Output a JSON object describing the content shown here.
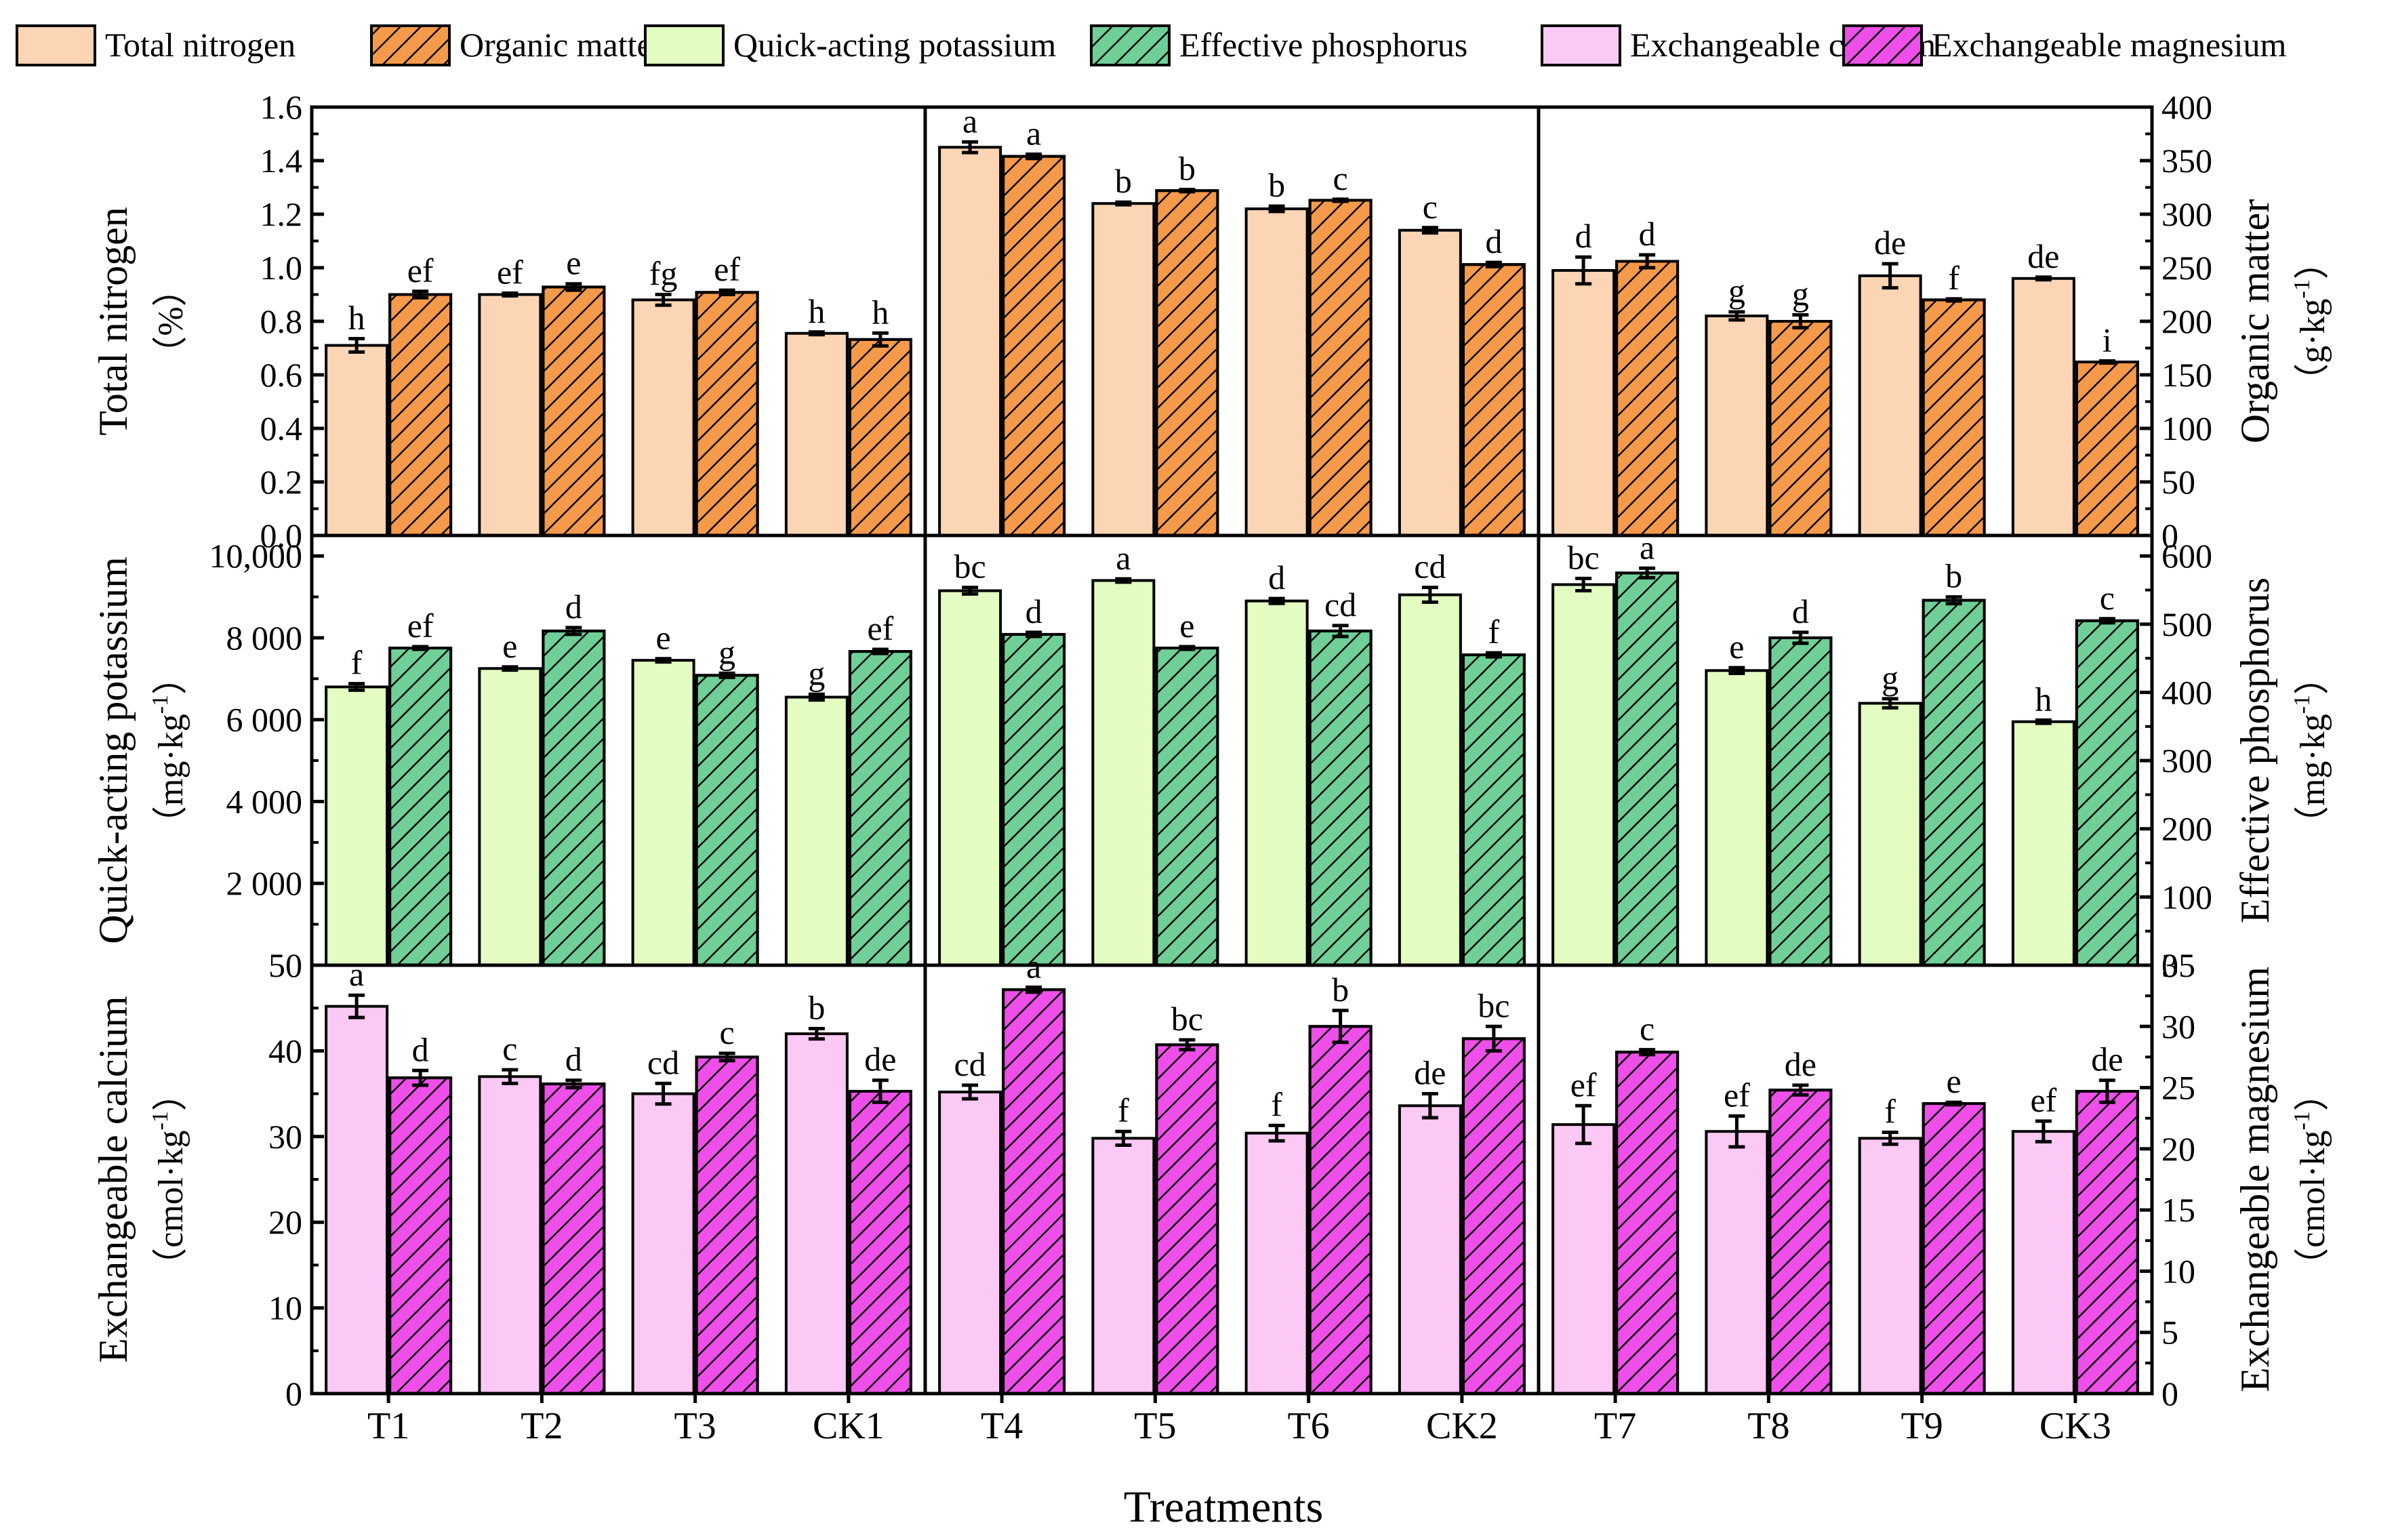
{
  "figure_title": "",
  "x_axis_label": "Treatments",
  "categories": [
    "T1",
    "T2",
    "T3",
    "CK1",
    "T4",
    "T5",
    "T6",
    "CK2",
    "T7",
    "T8",
    "T9",
    "CK3"
  ],
  "colors": {
    "total_nitrogen": "#fcd5b5",
    "organic_matter": "#f59a4a",
    "quick_acting_potassium": "#e3fcc2",
    "effective_phosphorus": "#6fcf97",
    "exchangeable_calcium": "#fcc9f4",
    "exchangeable_magnesium": "#ee4fe8"
  },
  "legend": [
    {
      "label": "Total nitrogen",
      "key": "total_nitrogen",
      "hatched": false
    },
    {
      "label": "Organic matter",
      "key": "organic_matter",
      "hatched": true
    },
    {
      "label": "Quick-acting potassium",
      "key": "quick_acting_potassium",
      "hatched": false
    },
    {
      "label": "Effective phosphorus",
      "key": "effective_phosphorus",
      "hatched": true
    },
    {
      "label": "Exchangeable calcium",
      "key": "exchangeable_calcium",
      "hatched": false
    },
    {
      "label": "Exchangeable magnesium",
      "key": "exchangeable_magnesium",
      "hatched": true
    }
  ],
  "chart_data": [
    {
      "type": "bar",
      "panel": "top",
      "categories": [
        "T1",
        "T2",
        "T3",
        "CK1",
        "T4",
        "T5",
        "T6",
        "CK2",
        "T7",
        "T8",
        "T9",
        "CK3"
      ],
      "left_axis": {
        "label_line1": "Total nitrogen",
        "label_line2": "（%）",
        "ylim": [
          0,
          1.6
        ],
        "ticks": [
          "0.0",
          "0.2",
          "0.4",
          "0.6",
          "0.8",
          "1.0",
          "1.2",
          "1.4",
          "1.6"
        ]
      },
      "right_axis": {
        "label_line1": "Organic matter",
        "label_line2": "（g·kg",
        "label_sup": "-1",
        "label_close": "）",
        "ylim": [
          0,
          400
        ],
        "ticks": [
          "0",
          "50",
          "100",
          "150",
          "200",
          "250",
          "300",
          "350",
          "400"
        ]
      },
      "series": [
        {
          "name": "Total nitrogen",
          "key": "total_nitrogen",
          "axis": "left",
          "hatched": false,
          "values": [
            0.71,
            0.9,
            0.88,
            0.755,
            1.45,
            1.24,
            1.22,
            1.14,
            0.99,
            0.82,
            0.97,
            0.96
          ],
          "errors": [
            0.025,
            0.005,
            0.02,
            0.005,
            0.02,
            0.005,
            0.01,
            0.01,
            0.05,
            0.015,
            0.045,
            0.005
          ],
          "letters": [
            "h",
            "ef",
            "fg",
            "h",
            "a",
            "b",
            "b",
            "c",
            "d",
            "g",
            "de",
            "de"
          ]
        },
        {
          "name": "Organic matter",
          "key": "organic_matter",
          "axis": "right",
          "hatched": true,
          "values": [
            225,
            232,
            227,
            183,
            354,
            322,
            313,
            253,
            256,
            200,
            220,
            162
          ],
          "errors": [
            3,
            3,
            2,
            6,
            2,
            1,
            1,
            2,
            6,
            6,
            1,
            1
          ],
          "letters": [
            "ef",
            "e",
            "ef",
            "h",
            "a",
            "b",
            "c",
            "d",
            "d",
            "g",
            "f",
            "i"
          ]
        }
      ]
    },
    {
      "type": "bar",
      "panel": "middle",
      "categories": [
        "T1",
        "T2",
        "T3",
        "CK1",
        "T4",
        "T5",
        "T6",
        "CK2",
        "T7",
        "T8",
        "T9",
        "CK3"
      ],
      "left_axis": {
        "label_line1": "Quick-acting potassium",
        "label_line2": "（mg·kg",
        "label_sup": "-1",
        "label_close": "）",
        "ylim": [
          0,
          10500
        ],
        "ticks": [
          "",
          "2 000",
          "4 000",
          "6 000",
          "8 000",
          "10,000"
        ]
      },
      "right_axis": {
        "label_line1": "Effective phosphorus",
        "label_line2": "（mg·kg",
        "label_sup": "-1",
        "label_close": "）",
        "ylim": [
          0,
          630
        ],
        "ticks": [
          "0",
          "100",
          "200",
          "300",
          "400",
          "500",
          "600"
        ]
      },
      "series": [
        {
          "name": "Quick-acting potassium",
          "key": "quick_acting_potassium",
          "axis": "left",
          "hatched": false,
          "values": [
            6800,
            7250,
            7450,
            6550,
            9150,
            9400,
            8900,
            9050,
            9300,
            7200,
            6400,
            5950
          ],
          "errors": [
            80,
            40,
            40,
            70,
            80,
            40,
            60,
            180,
            150,
            70,
            110,
            40
          ],
          "letters": [
            "f",
            "e",
            "e",
            "g",
            "bc",
            "a",
            "d",
            "cd",
            "bc",
            "e",
            "g",
            "h"
          ]
        },
        {
          "name": "Effective phosphorus",
          "key": "effective_phosphorus",
          "axis": "right",
          "hatched": true,
          "values": [
            465,
            490,
            425,
            460,
            485,
            465,
            490,
            455,
            575,
            480,
            535,
            505
          ],
          "errors": [
            2,
            5,
            3,
            3,
            3,
            2,
            8,
            3,
            7,
            8,
            5,
            3
          ],
          "letters": [
            "ef",
            "d",
            "g",
            "ef",
            "d",
            "e",
            "cd",
            "f",
            "a",
            "d",
            "b",
            "c"
          ]
        }
      ]
    },
    {
      "type": "bar",
      "panel": "bottom",
      "categories": [
        "T1",
        "T2",
        "T3",
        "CK1",
        "T4",
        "T5",
        "T6",
        "CK2",
        "T7",
        "T8",
        "T9",
        "CK3"
      ],
      "left_axis": {
        "label_line1": "Exchangeable calcium",
        "label_line2": "（cmol·kg",
        "label_sup": "-1",
        "label_close": "）",
        "ylim": [
          0,
          50
        ],
        "ticks": [
          "0",
          "10",
          "20",
          "30",
          "40",
          "50"
        ]
      },
      "right_axis": {
        "label_line1": "Exchangeable magnesium",
        "label_line2": "（cmol·kg",
        "label_sup": "-1",
        "label_close": "）",
        "ylim": [
          0,
          35
        ],
        "ticks": [
          "0",
          "5",
          "10",
          "15",
          "20",
          "25",
          "30",
          "35"
        ]
      },
      "series": [
        {
          "name": "Exchangeable calcium",
          "key": "exchangeable_calcium",
          "axis": "left",
          "hatched": false,
          "values": [
            45.2,
            37.0,
            35.0,
            42.0,
            35.2,
            29.8,
            30.4,
            33.6,
            31.4,
            30.6,
            29.8,
            30.6
          ],
          "errors": [
            1.3,
            0.8,
            1.2,
            0.6,
            0.8,
            0.8,
            0.9,
            1.4,
            2.2,
            1.8,
            0.7,
            1.2
          ],
          "letters": [
            "a",
            "c",
            "cd",
            "b",
            "cd",
            "f",
            "f",
            "de",
            "ef",
            "ef",
            "f",
            "ef"
          ]
        },
        {
          "name": "Exchangeable magnesium",
          "key": "exchangeable_magnesium",
          "axis": "right",
          "hatched": true,
          "values": [
            25.8,
            25.3,
            27.5,
            24.7,
            33.0,
            28.5,
            30.0,
            29.0,
            27.9,
            24.8,
            23.7,
            24.7
          ],
          "errors": [
            0.6,
            0.3,
            0.3,
            0.9,
            0.2,
            0.4,
            1.3,
            1.0,
            0.2,
            0.4,
            0.1,
            0.9
          ],
          "letters": [
            "d",
            "d",
            "c",
            "de",
            "a",
            "bc",
            "b",
            "bc",
            "c",
            "de",
            "e",
            "de"
          ]
        }
      ]
    }
  ]
}
